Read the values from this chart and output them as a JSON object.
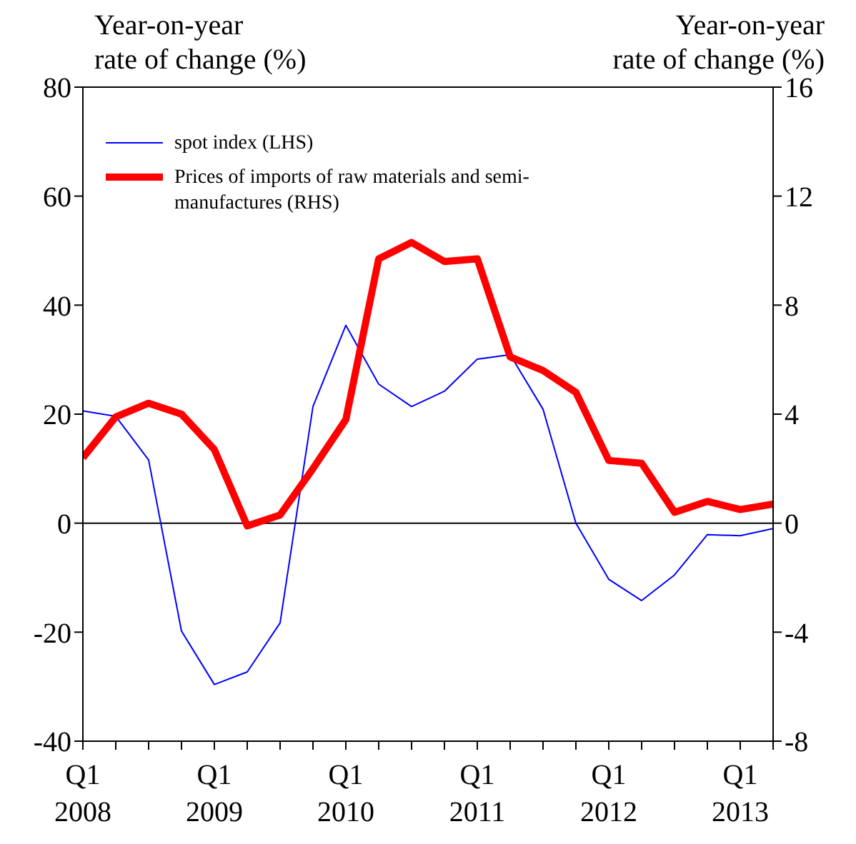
{
  "chart_data": {
    "type": "line",
    "ylabel": "Year-on-year rate of change (%)",
    "y2label": "Year-on-year rate of change (%)",
    "categories": [
      "Q1 2008",
      null,
      null,
      null,
      "Q1 2009",
      null,
      null,
      null,
      "Q1 2010",
      null,
      null,
      null,
      "Q1 2011",
      null,
      null,
      null,
      "Q1 2012",
      null,
      null,
      null,
      "Q1 2013",
      null
    ],
    "series": [
      {
        "name": "spot index (LHS)",
        "color": "#0000ff",
        "values": [
          20.6,
          19.6,
          11.6,
          -19.8,
          -29.6,
          -27.3,
          -18.3,
          21.4,
          36.3,
          25.5,
          21.4,
          24.2,
          30.1,
          30.9,
          20.9,
          0,
          -10.3,
          -14.2,
          -9.5,
          -2.1,
          -2.3,
          -1.0
        ]
      },
      {
        "name": "Prices of imports of raw materials and semi-manufactures (RHS)",
        "color": "#ff0000",
        "axis": "y2",
        "values": [
          2.4,
          3.9,
          4.4,
          4.0,
          2.7,
          -0.1,
          0.3,
          2.0,
          3.8,
          9.7,
          10.3,
          9.6,
          9.7,
          6.1,
          5.6,
          4.8,
          2.3,
          2.2,
          0.4,
          0.8,
          0.5,
          0.7
        ]
      }
    ],
    "ylim": [
      -40,
      80
    ],
    "yticks": [
      -40,
      -20,
      0,
      20,
      40,
      60,
      80
    ],
    "y2lim": [
      -8,
      16
    ],
    "y2ticks": [
      -8,
      -4,
      0,
      4,
      8,
      12,
      16
    ],
    "ref_lines": [
      {
        "axis": "y",
        "value": 0,
        "color": "#000000"
      }
    ],
    "legend": "top left",
    "grid": false,
    "marker": "none",
    "line_style": "solid"
  }
}
